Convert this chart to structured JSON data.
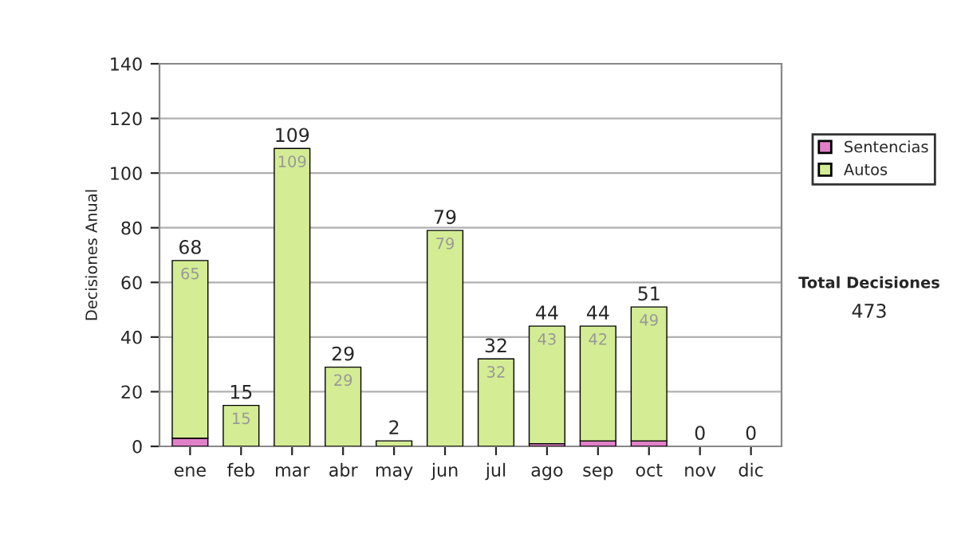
{
  "chart_data": {
    "type": "bar",
    "stacked": true,
    "ylabel": "Decisiones Anual",
    "categories": [
      "ene",
      "feb",
      "mar",
      "abr",
      "may",
      "jun",
      "jul",
      "ago",
      "sep",
      "oct",
      "nov",
      "dic"
    ],
    "series": [
      {
        "name": "Sentencias",
        "color": "#e080c8",
        "values": [
          3,
          0,
          0,
          0,
          0,
          0,
          0,
          1,
          2,
          2,
          0,
          0
        ]
      },
      {
        "name": "Autos",
        "color": "#d4ec94",
        "values": [
          65,
          15,
          109,
          29,
          2,
          79,
          32,
          43,
          42,
          49,
          0,
          0
        ],
        "value_labels": [
          "65",
          "15",
          "109",
          "29",
          null,
          "79",
          "32",
          "43",
          "42",
          "49",
          null,
          null
        ]
      }
    ],
    "totals": [
      "68",
      "15",
      "109",
      "29",
      "2",
      "79",
      "32",
      "44",
      "44",
      "51",
      "0",
      "0"
    ],
    "ylim": [
      0,
      140
    ],
    "yticks": [
      0,
      20,
      40,
      60,
      80,
      100,
      120,
      140
    ],
    "grid": "y",
    "legend": "right",
    "annotations": [
      "Total Decisiones",
      "473"
    ]
  }
}
